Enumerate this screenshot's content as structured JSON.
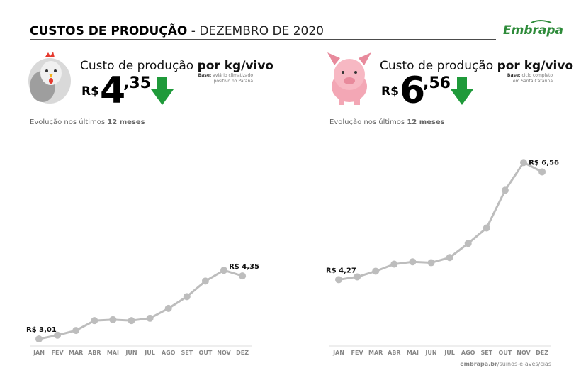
{
  "header": {
    "title": "CUSTOS DE PRODUÇÃO",
    "subtitle": "- DEZEMBRO DE 2020",
    "logo": "Embrapa"
  },
  "chart_data": [
    {
      "type": "line",
      "heading": "Custo de produção",
      "heading_bold": "por kg/vivo",
      "base_label": "Base:",
      "base_lines": [
        "aviário climatizado",
        "positivo no Paraná"
      ],
      "currency": "R$",
      "price_integer": "4",
      "price_decimal": ",35",
      "subtitle": "Evolução nos últimos",
      "subtitle_bold": "12 meses",
      "categories": [
        "JAN",
        "FEV",
        "MAR",
        "ABR",
        "MAI",
        "JUN",
        "JUL",
        "AGO",
        "SET",
        "OUT",
        "NOV",
        "DEZ"
      ],
      "values": [
        3.01,
        3.09,
        3.19,
        3.4,
        3.42,
        3.4,
        3.45,
        3.66,
        3.91,
        4.24,
        4.47,
        4.35
      ],
      "value_labels": [
        "R$ 3,01",
        null,
        null,
        null,
        null,
        null,
        null,
        null,
        null,
        null,
        null,
        "R$ 4,35"
      ],
      "color": "#bdbdbd",
      "ylim": [
        2.86,
        7.2
      ]
    },
    {
      "type": "line",
      "heading": "Custo de produção",
      "heading_bold": "por kg/vivo",
      "base_label": "Base:",
      "base_lines": [
        "ciclo completo",
        "em Santa Catarina"
      ],
      "currency": "R$",
      "price_integer": "6",
      "price_decimal": ",56",
      "subtitle": "Evolução nos últimos",
      "subtitle_bold": "12 meses",
      "categories": [
        "JAN",
        "FEV",
        "MAR",
        "ABR",
        "MAI",
        "JUN",
        "JUL",
        "AGO",
        "SET",
        "OUT",
        "NOV",
        "DEZ"
      ],
      "values": [
        4.27,
        4.33,
        4.45,
        4.6,
        4.65,
        4.63,
        4.74,
        5.04,
        5.37,
        6.17,
        6.76,
        6.56
      ],
      "value_labels": [
        "R$ 4,27",
        null,
        null,
        null,
        null,
        null,
        null,
        null,
        null,
        null,
        null,
        "R$ 6,56"
      ],
      "color": "#bdbdbd",
      "ylim": [
        2.86,
        7.2
      ]
    }
  ],
  "footer": {
    "domain": "embrapa.br",
    "path": "/suinos-e-aves/cias"
  }
}
